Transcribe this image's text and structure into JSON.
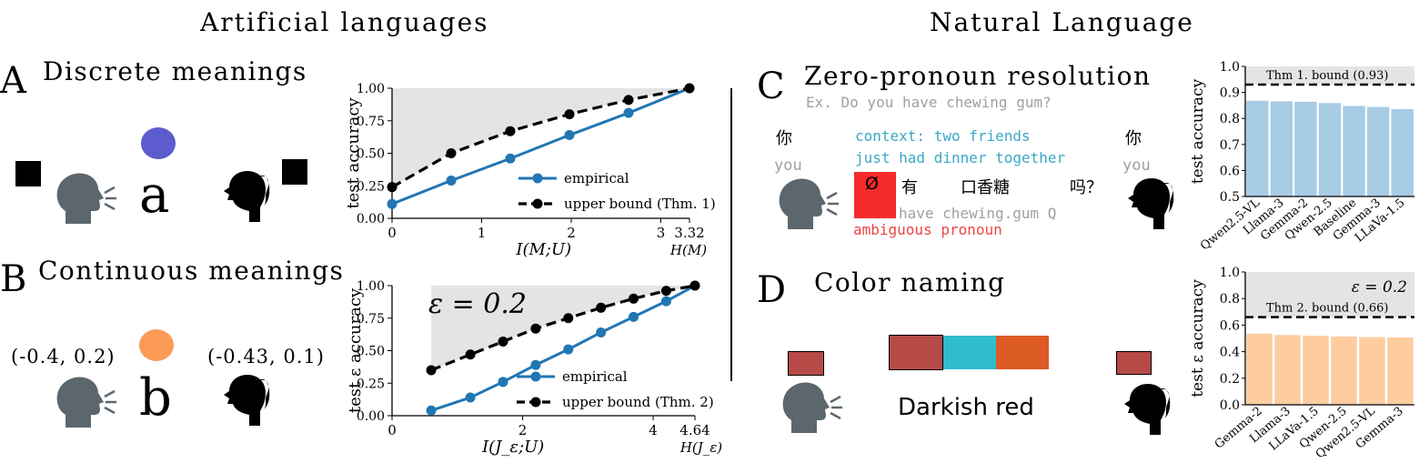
{
  "headers": {
    "left": "Artificial languages",
    "right": "Natural Language"
  },
  "panels": {
    "A": {
      "letter": "A",
      "title": "Discrete meanings",
      "symbol": "a"
    },
    "B": {
      "letter": "B",
      "title": "Continuous meanings",
      "symbol": "b",
      "speaker_coord": "(-0.4, 0.2)",
      "listener_coord": "(-0.43, 0.1)"
    },
    "C": {
      "letter": "C",
      "title": "Zero-pronoun resolution",
      "example": "Ex. Do you have chewing gum?",
      "you_char": "你",
      "you_gloss": "you",
      "context_line1": "context: two friends",
      "context_line2": "just had dinner together",
      "sentence": {
        "null": "Ø",
        "have": "有",
        "gum": "口香糖",
        "q": "吗？"
      },
      "gloss": "have chewing.gum Q",
      "ambiguous": "ambiguous pronoun"
    },
    "D": {
      "letter": "D",
      "title": "Color naming",
      "color_word": "Darkish red"
    }
  },
  "colors": {
    "blue_line": "#2176b4",
    "grey_fill": "#e4e4e4",
    "bar_blue": "#a8cbe6",
    "bar_orange": "#fdcda0",
    "purple_dot": "#5c5ccf",
    "orange_dot": "#fc9b56",
    "cyan_text": "#3aa8c5",
    "red_text": "#ee4444",
    "red_box": "#f52b2b",
    "swatch_red": "#b64a46",
    "swatch_cyan": "#2fbccd",
    "swatch_orange": "#dc5b25",
    "head_grey": "#5b676d"
  },
  "chart_data": [
    {
      "id": "A",
      "type": "line",
      "xlabel": "I(M;U)",
      "xlabel_right": "H(M)",
      "ylabel": "test accuracy",
      "xlim": [
        0,
        3.32
      ],
      "ylim": [
        0,
        1
      ],
      "xticks": [
        "0",
        "1",
        "2",
        "3",
        "3.32"
      ],
      "yticks": [
        "0.00",
        "0.25",
        "0.50",
        "0.75",
        "1.00"
      ],
      "series": [
        {
          "name": "empirical",
          "x": [
            0,
            0.66,
            1.32,
            1.98,
            2.64,
            3.32
          ],
          "y": [
            0.11,
            0.29,
            0.46,
            0.64,
            0.81,
            1.0
          ]
        },
        {
          "name": "upper bound (Thm. 1)",
          "x": [
            0,
            0.66,
            1.32,
            1.98,
            2.64,
            3.32
          ],
          "y": [
            0.24,
            0.5,
            0.67,
            0.8,
            0.91,
            1.0
          ]
        }
      ],
      "legend": "lower-right",
      "grid": false
    },
    {
      "id": "B",
      "type": "line",
      "xlabel": "I(J_ε;U)",
      "xlabel_right": "H(J_ε)",
      "ylabel": "test ε accuracy",
      "annotation": "ε = 0.2",
      "xlim": [
        0,
        4.64
      ],
      "ylim": [
        0,
        1
      ],
      "xticks": [
        "0",
        "2",
        "4",
        "4.64"
      ],
      "yticks": [
        "0.00",
        "0.25",
        "0.50",
        "0.75",
        "1.00"
      ],
      "series": [
        {
          "name": "empirical",
          "x": [
            0.6,
            1.2,
            1.7,
            2.2,
            2.7,
            3.2,
            3.7,
            4.2,
            4.64
          ],
          "y": [
            0.04,
            0.14,
            0.26,
            0.39,
            0.51,
            0.64,
            0.76,
            0.88,
            1.0
          ]
        },
        {
          "name": "upper bound (Thm. 2)",
          "x": [
            0.6,
            1.2,
            1.7,
            2.2,
            2.7,
            3.2,
            3.7,
            4.2,
            4.64
          ],
          "y": [
            0.35,
            0.47,
            0.57,
            0.67,
            0.75,
            0.83,
            0.9,
            0.96,
            1.0
          ]
        }
      ],
      "legend": "lower-right",
      "grid": false
    },
    {
      "id": "C",
      "type": "bar",
      "ylabel": "test accuracy",
      "ylim": [
        0.5,
        1.0
      ],
      "yticks": [
        "0.5",
        "0.6",
        "0.7",
        "0.8",
        "0.9",
        "1.0"
      ],
      "categories": [
        "Qwen2.5-VL",
        "Llama-3",
        "Gemma-2",
        "Qwen-2.5",
        "Baseline",
        "Gemma-3",
        "LLaVa-1.5"
      ],
      "values": [
        0.868,
        0.866,
        0.864,
        0.859,
        0.848,
        0.844,
        0.836
      ],
      "bound_label": "Thm 1. bound (0.93)",
      "bound": 0.93
    },
    {
      "id": "D",
      "type": "bar",
      "ylabel": "test ε accuracy",
      "annotation": "ε = 0.2",
      "ylim": [
        0.0,
        1.0
      ],
      "yticks": [
        "0.0",
        "0.2",
        "0.4",
        "0.6",
        "0.8",
        "1.0"
      ],
      "categories": [
        "Gemma-2",
        "Llama-3",
        "LLaVa-1.5",
        "Qwen-2.5",
        "Qwen2.5-VL",
        "Gemma-3"
      ],
      "values": [
        0.535,
        0.525,
        0.52,
        0.514,
        0.51,
        0.507
      ],
      "bound_label": "Thm 2. bound (0.66)",
      "bound": 0.66
    }
  ]
}
